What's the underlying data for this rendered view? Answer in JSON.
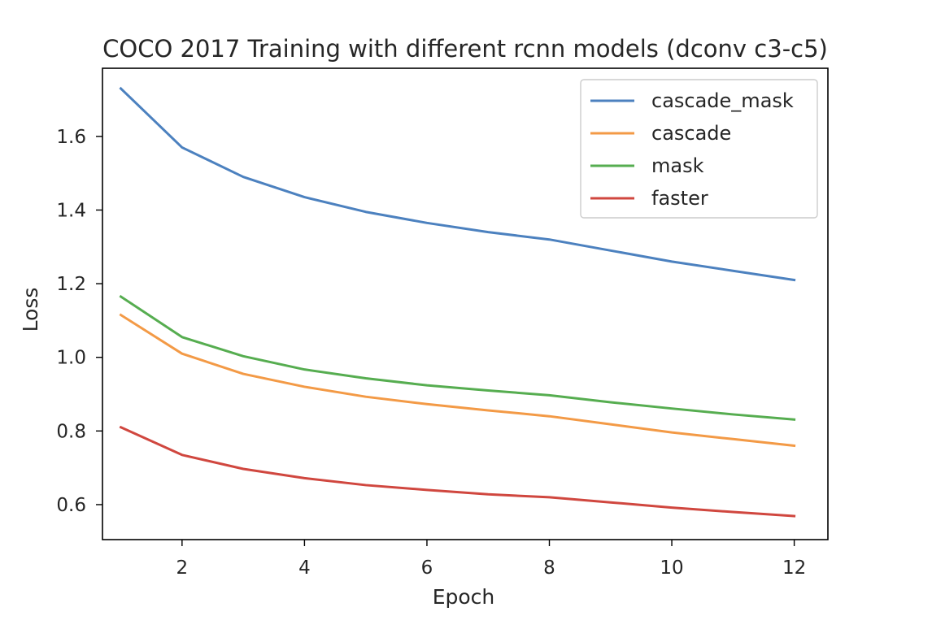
{
  "chart_data": {
    "type": "line",
    "title": "COCO 2017 Training with different rcnn models (dconv c3-c5)",
    "xlabel": "Epoch",
    "ylabel": "Loss",
    "xlim": [
      0.7,
      12.55
    ],
    "ylim": [
      0.505,
      1.785
    ],
    "xticks": [
      2,
      4,
      6,
      8,
      10,
      12
    ],
    "yticks": [
      0.6,
      0.8,
      1.0,
      1.2,
      1.4,
      1.6
    ],
    "grid": false,
    "legend_position": "top-right",
    "x": [
      1,
      2,
      3,
      4,
      5,
      6,
      7,
      8,
      9,
      10,
      11,
      12
    ],
    "series": [
      {
        "name": "cascade_mask",
        "color": "#4c81bf",
        "values": [
          1.73,
          1.57,
          1.49,
          1.435,
          1.395,
          1.365,
          1.34,
          1.32,
          1.29,
          1.26,
          1.235,
          1.21
        ]
      },
      {
        "name": "cascade",
        "color": "#f39a46",
        "values": [
          1.115,
          1.01,
          0.955,
          0.92,
          0.893,
          0.873,
          0.856,
          0.84,
          0.818,
          0.796,
          0.778,
          0.76
        ]
      },
      {
        "name": "mask",
        "color": "#56ad50",
        "values": [
          1.165,
          1.055,
          1.003,
          0.967,
          0.943,
          0.924,
          0.91,
          0.897,
          0.878,
          0.861,
          0.845,
          0.831
        ]
      },
      {
        "name": "faster",
        "color": "#d0473f",
        "values": [
          0.81,
          0.735,
          0.697,
          0.672,
          0.653,
          0.64,
          0.628,
          0.62,
          0.606,
          0.592,
          0.58,
          0.569
        ]
      }
    ]
  }
}
